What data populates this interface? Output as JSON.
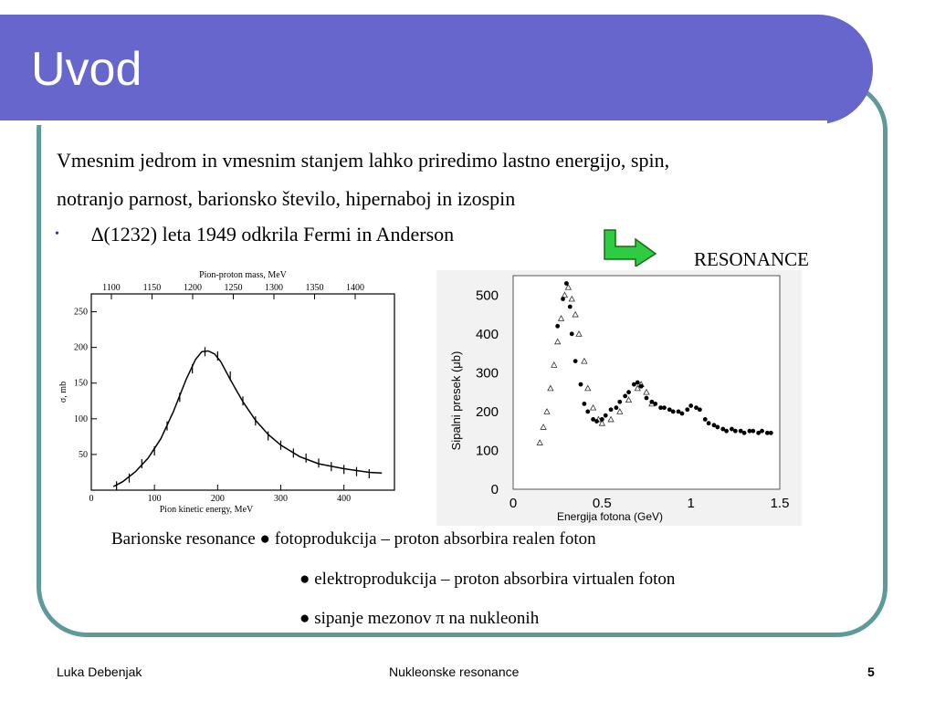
{
  "slide": {
    "title": "Uvod",
    "line1": "Vmesnim jedrom in vmesnim stanjem lahko priredimo lastno energijo, spin,",
    "line2": "notranjo parnost, barionsko število, hipernaboj in izospin",
    "bullet_marker": "•",
    "bullet_text": "∆(1232) leta 1949 odkrila Fermi in Anderson",
    "arrow_color": "#2ecc40",
    "resonance_label": "RESONANCE",
    "caption1": "Barionske resonance ● fotoprodukcija – proton absorbira realen foton",
    "caption2": "● elektroprodukcija – proton absorbira virtualen foton",
    "caption3": "● sipanje mezonov π na nukleonih"
  },
  "footer": {
    "author": "Luka Debenjak",
    "topic": "Nukleonske resonance",
    "page": "5"
  },
  "colors": {
    "title_band": "#6666cc",
    "frame": "#5f9a9a",
    "bullet": "#333399"
  },
  "chart_data": [
    {
      "type": "line",
      "top_axis_label": "Pion-proton mass, MeV",
      "top_ticks": [
        "1100",
        "1150",
        "1200",
        "1250",
        "1300",
        "1350",
        "1400"
      ],
      "xlabel": "Pion kinetic energy, MeV",
      "ylabel": "σ, mb",
      "xlim": [
        0,
        480
      ],
      "ylim": [
        0,
        275
      ],
      "x_ticks": [
        "0",
        "100",
        "200",
        "300",
        "400"
      ],
      "y_ticks": [
        "50",
        "100",
        "150",
        "200",
        "250"
      ],
      "curve": {
        "x": [
          35,
          50,
          70,
          90,
          110,
          130,
          150,
          165,
          175,
          185,
          195,
          205,
          220,
          240,
          260,
          280,
          300,
          330,
          360,
          400,
          440,
          460
        ],
        "y": [
          5,
          12,
          26,
          45,
          72,
          110,
          155,
          183,
          194,
          195,
          191,
          180,
          155,
          124,
          98,
          78,
          63,
          47,
          37,
          30,
          25,
          24
        ]
      },
      "points": {
        "x": [
          40,
          60,
          80,
          100,
          120,
          140,
          160,
          180,
          200,
          220,
          240,
          260,
          280,
          300,
          320,
          340,
          360,
          380,
          400,
          420,
          440
        ],
        "y": [
          6,
          17,
          37,
          55,
          90,
          130,
          170,
          194,
          188,
          160,
          125,
          97,
          76,
          63,
          52,
          45,
          38,
          33,
          29,
          26,
          23
        ]
      }
    },
    {
      "type": "scatter",
      "xlabel": "Energija fotona (GeV)",
      "ylabel": "Sipalni presek (μb)",
      "xlim": [
        0,
        1.5
      ],
      "ylim": [
        0,
        550
      ],
      "x_ticks": [
        "0",
        "0.5",
        "1",
        "1.5"
      ],
      "y_ticks": [
        "0",
        "100",
        "200",
        "300",
        "400",
        "500"
      ],
      "series": [
        {
          "marker": "dot",
          "x": [
            0.25,
            0.28,
            0.3,
            0.32,
            0.33,
            0.35,
            0.38,
            0.4,
            0.42,
            0.45,
            0.47,
            0.5,
            0.52,
            0.55,
            0.58,
            0.6,
            0.63,
            0.65,
            0.68,
            0.7,
            0.72,
            0.75,
            0.78,
            0.8,
            0.83,
            0.85,
            0.88,
            0.9,
            0.93,
            0.95,
            0.98,
            1.0,
            1.03,
            1.05,
            1.08,
            1.1,
            1.13,
            1.15,
            1.18,
            1.2,
            1.23,
            1.25,
            1.28,
            1.3,
            1.33,
            1.35,
            1.38,
            1.4,
            1.43,
            1.45
          ],
          "y": [
            420,
            490,
            530,
            470,
            400,
            330,
            270,
            220,
            200,
            180,
            175,
            180,
            190,
            205,
            210,
            225,
            240,
            250,
            270,
            275,
            265,
            235,
            225,
            220,
            210,
            210,
            205,
            200,
            200,
            195,
            205,
            215,
            210,
            205,
            180,
            170,
            165,
            160,
            155,
            150,
            155,
            150,
            150,
            145,
            150,
            150,
            145,
            150,
            145,
            145
          ]
        },
        {
          "marker": "triangle",
          "x": [
            0.15,
            0.17,
            0.19,
            0.21,
            0.23,
            0.25,
            0.27,
            0.29,
            0.31,
            0.33,
            0.35,
            0.37,
            0.4,
            0.42,
            0.45,
            0.48,
            0.5,
            0.55,
            0.6,
            0.65,
            0.7,
            0.72,
            0.75,
            0.78
          ],
          "y": [
            120,
            160,
            200,
            260,
            320,
            380,
            440,
            500,
            520,
            490,
            450,
            400,
            330,
            260,
            210,
            180,
            170,
            180,
            200,
            230,
            260,
            270,
            250,
            220
          ]
        }
      ]
    }
  ]
}
